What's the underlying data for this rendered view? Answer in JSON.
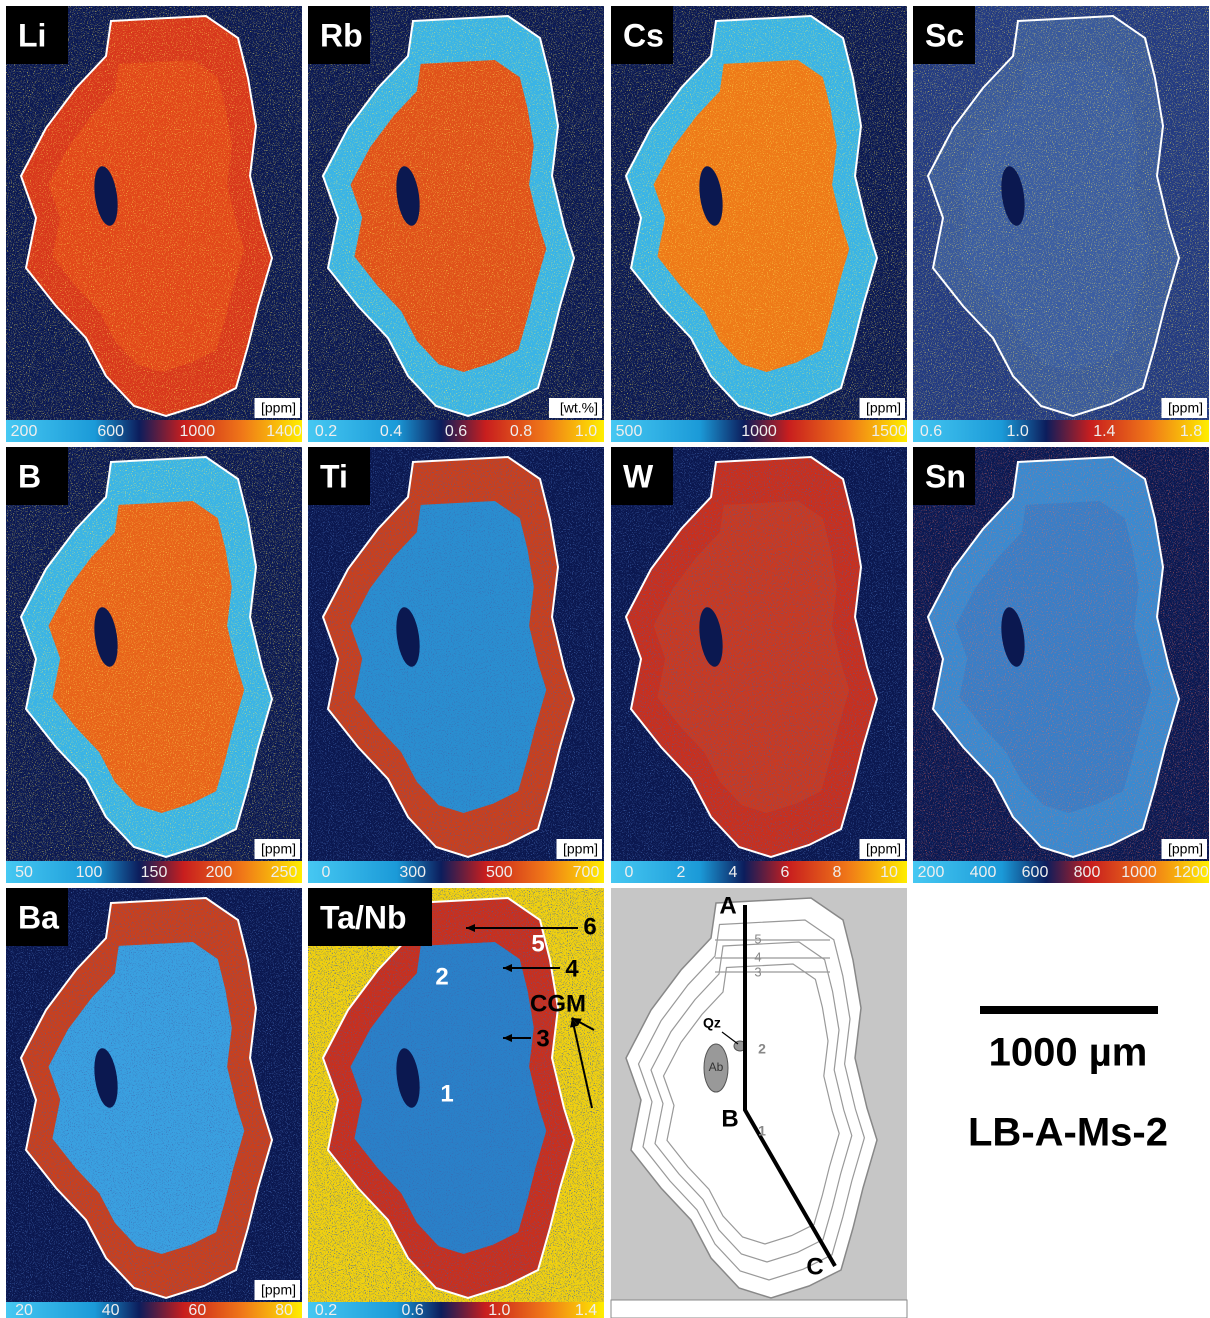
{
  "panels": [
    {
      "label": "Li",
      "unit": "[ppm]",
      "ticks": [
        "200",
        "600",
        "1000",
        "1400"
      ]
    },
    {
      "label": "Rb",
      "unit": "[wt.%]",
      "ticks": [
        "0.2",
        "0.4",
        "0.6",
        "0.8",
        "1.0"
      ]
    },
    {
      "label": "Cs",
      "unit": "[ppm]",
      "ticks": [
        "500",
        "1000",
        "1500"
      ]
    },
    {
      "label": "Sc",
      "unit": "[ppm]",
      "ticks": [
        "0.6",
        "1.0",
        "1.4",
        "1.8"
      ]
    },
    {
      "label": "B",
      "unit": "[ppm]",
      "ticks": [
        "50",
        "100",
        "150",
        "200",
        "250"
      ]
    },
    {
      "label": "Ti",
      "unit": "[ppm]",
      "ticks": [
        "0",
        "300",
        "500",
        "700"
      ]
    },
    {
      "label": "W",
      "unit": "[ppm]",
      "ticks": [
        "0",
        "2",
        "4",
        "6",
        "8",
        "10"
      ]
    },
    {
      "label": "Sn",
      "unit": "[ppm]",
      "ticks": [
        "200",
        "400",
        "600",
        "800",
        "1000",
        "1200"
      ]
    },
    {
      "label": "Ba",
      "unit": "[ppm]",
      "ticks": [
        "20",
        "40",
        "60",
        "80"
      ]
    },
    {
      "label": "Ta/Nb",
      "ticks": [
        "0.2",
        "0.6",
        "1.0",
        "1.4"
      ],
      "annotations": [
        "6",
        "5",
        "4",
        "2",
        "3",
        "1",
        "CGM"
      ]
    }
  ],
  "sketch": {
    "labels": [
      "A",
      "B",
      "C",
      "Qz",
      "Ab",
      "1",
      "2",
      "3",
      "4",
      "5"
    ]
  },
  "scale_bar": "1000 µm",
  "sample": "LB-A-Ms-2"
}
